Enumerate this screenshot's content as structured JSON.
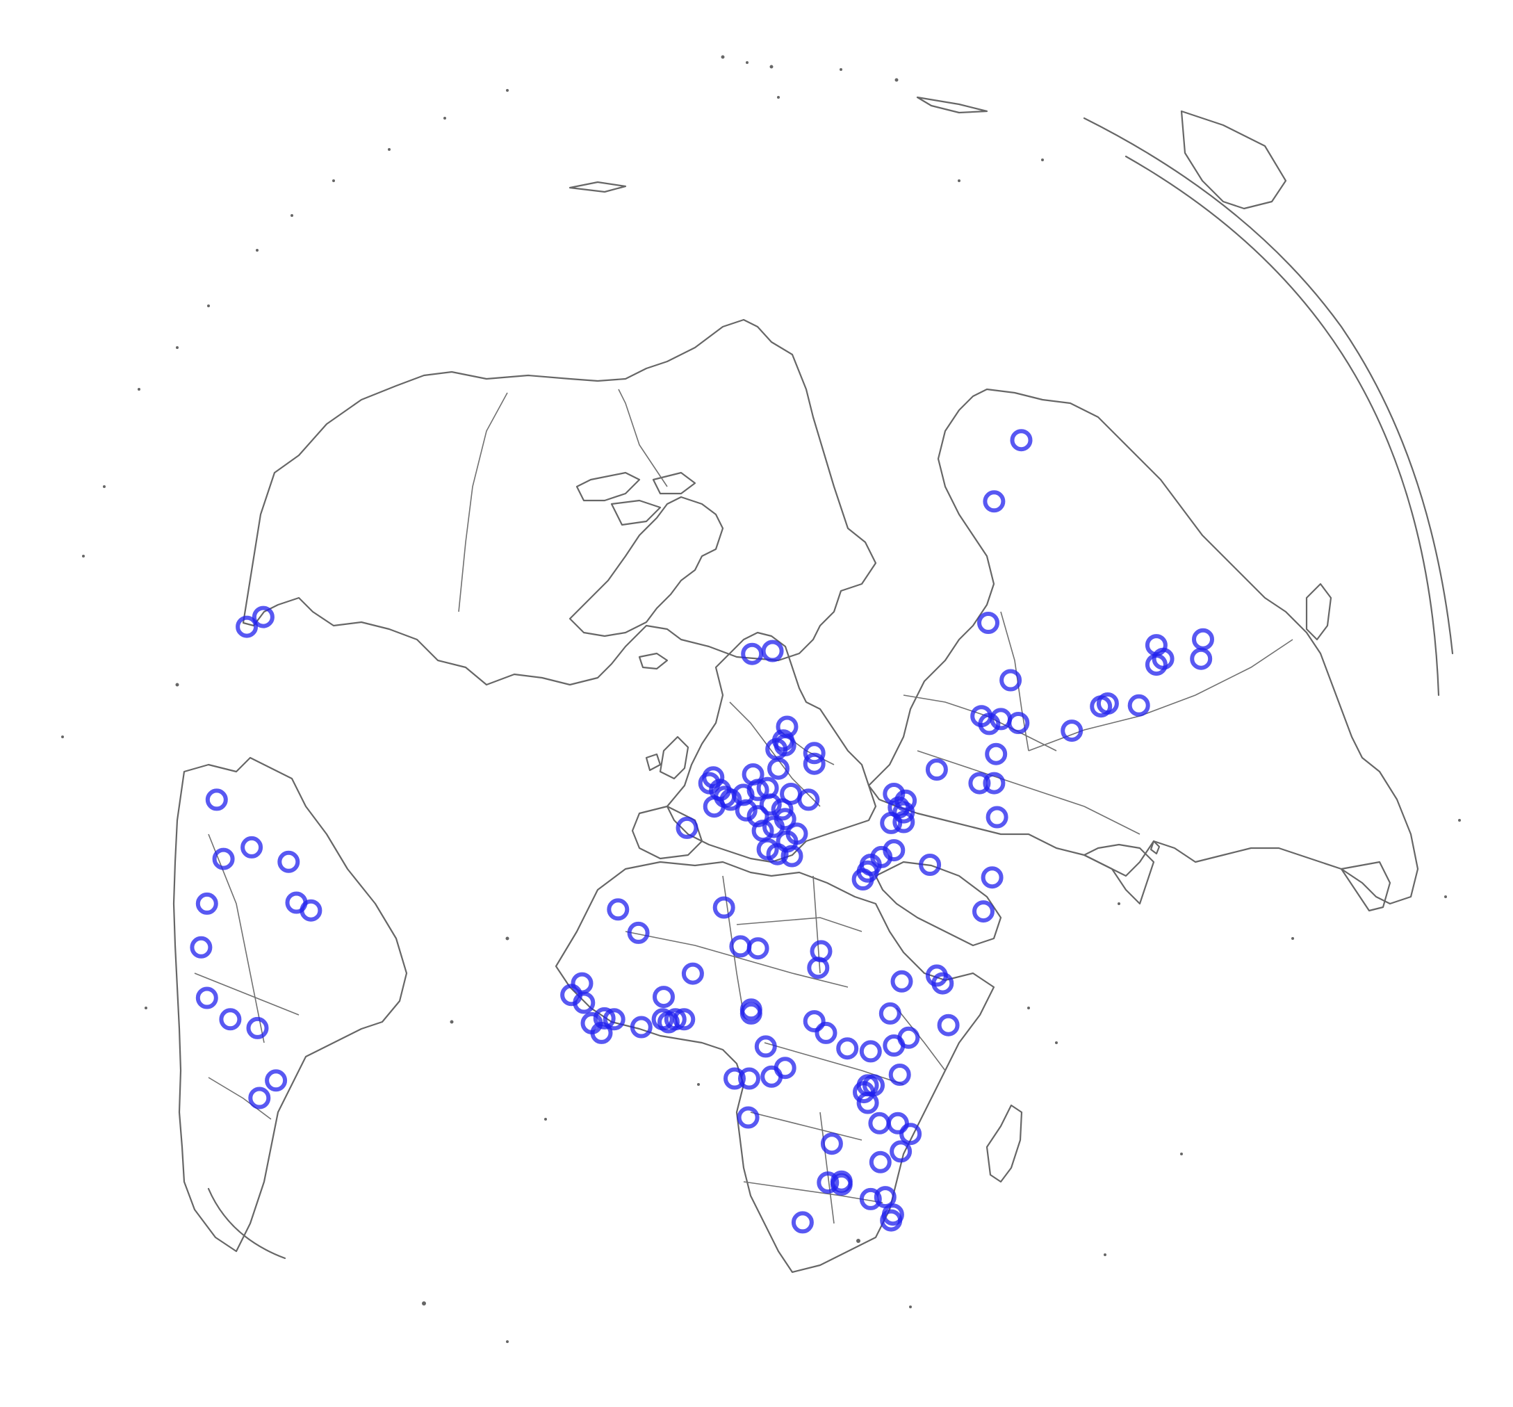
{
  "map": {
    "projection": "azimuthal",
    "style": {
      "background": "#ffffff",
      "coastline_color": "#666666",
      "border_color": "#707070",
      "marker_color": "#2020ee"
    },
    "marker_shape": "hollow-circle",
    "marker_count": 181
  }
}
